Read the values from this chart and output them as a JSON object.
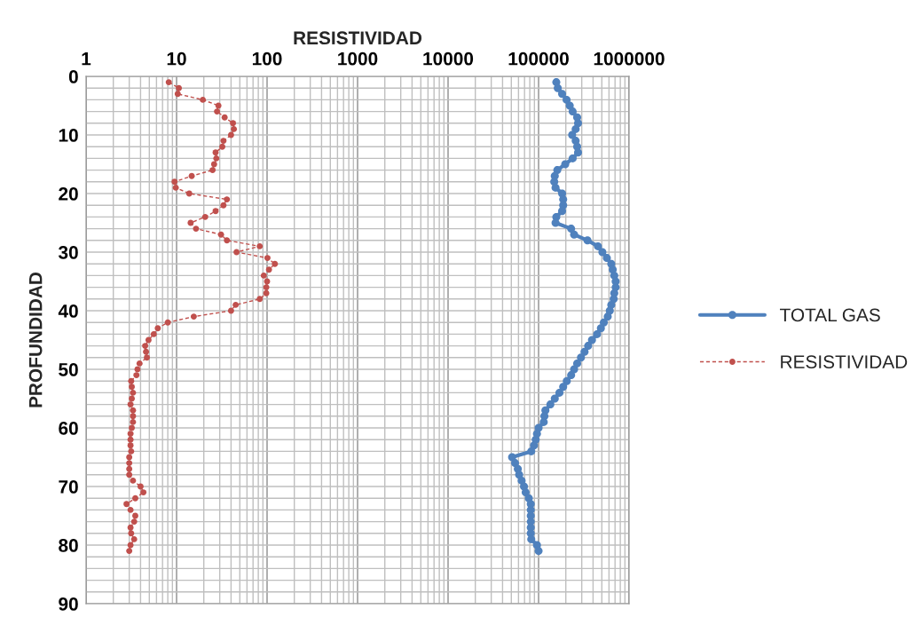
{
  "chart_data": {
    "type": "line",
    "xlabel": "RESISTIVIDAD",
    "ylabel": "PROFUNDIDAD",
    "log": "x",
    "xlim": [
      1,
      1000000
    ],
    "xticks": [
      1,
      10,
      100,
      1000,
      10000,
      100000,
      1000000
    ],
    "ylim": [
      90,
      0
    ],
    "yticks": [
      0,
      {
        "value": 2,
        "label": null
      },
      {
        "value": 4,
        "label": null
      },
      {
        "value": 6,
        "label": null
      },
      {
        "value": 8,
        "label": null
      },
      10,
      {
        "value": 12,
        "label": null
      },
      {
        "value": 14,
        "label": null
      },
      {
        "value": 16,
        "label": null
      },
      {
        "value": 18,
        "label": null
      },
      20,
      {
        "value": 22,
        "label": null
      },
      {
        "value": 24,
        "label": null
      },
      {
        "value": 26,
        "label": null
      },
      {
        "value": 28,
        "label": null
      },
      30,
      {
        "value": 32,
        "label": null
      },
      {
        "value": 34,
        "label": null
      },
      {
        "value": 36,
        "label": null
      },
      {
        "value": 38,
        "label": null
      },
      40,
      {
        "value": 42,
        "label": null
      },
      {
        "value": 44,
        "label": null
      },
      {
        "value": 46,
        "label": null
      },
      {
        "value": 48,
        "label": null
      },
      50,
      {
        "value": 52,
        "label": null
      },
      {
        "value": 54,
        "label": null
      },
      {
        "value": 56,
        "label": null
      },
      {
        "value": 58,
        "label": null
      },
      60,
      {
        "value": 62,
        "label": null
      },
      {
        "value": 64,
        "label": null
      },
      {
        "value": 66,
        "label": null
      },
      {
        "value": 68,
        "label": null
      },
      70,
      {
        "value": 72,
        "label": null
      },
      {
        "value": 74,
        "label": null
      },
      {
        "value": 76,
        "label": null
      },
      {
        "value": 78,
        "label": null
      },
      80,
      {
        "value": 82,
        "label": null
      },
      {
        "value": 84,
        "label": null
      },
      {
        "value": 86,
        "label": null
      },
      {
        "value": 88,
        "label": null
      },
      90
    ],
    "grid": true,
    "legend": "right",
    "series": [
      {
        "name": "TOTAL GAS",
        "color": "#4f81bd",
        "marker": "circle",
        "line_style": "solid",
        "x": [
          157000,
          163000,
          182000,
          204000,
          221000,
          238000,
          267000,
          273000,
          257000,
          235000,
          257000,
          267000,
          273000,
          238000,
          197000,
          161000,
          151000,
          149000,
          154000,
          182000,
          187000,
          187000,
          182000,
          157000,
          154000,
          229000,
          247000,
          347000,
          453000,
          507000,
          568000,
          636000,
          660000,
          686000,
          711000,
          711000,
          686000,
          676000,
          636000,
          612000,
          581000,
          526000,
          488000,
          443000,
          389000,
          353000,
          322000,
          294000,
          267000,
          247000,
          229000,
          205000,
          187000,
          170000,
          151000,
          135000,
          119000,
          116000,
          114000,
          100000,
          96000,
          93000,
          89000,
          83000,
          51000,
          55000,
          59000,
          61000,
          65000,
          69000,
          72000,
          78000,
          82000,
          82000,
          82000,
          82000,
          82000,
          82000,
          83000,
          96000,
          100000
        ],
        "values": [
          1,
          2,
          3,
          4,
          5,
          6,
          7,
          8,
          9,
          10,
          11,
          12,
          13,
          14,
          15,
          16,
          17,
          18,
          19,
          20,
          21,
          22,
          23,
          24,
          25,
          26,
          27,
          28,
          29,
          30,
          31,
          32,
          33,
          34,
          35,
          36,
          37,
          38,
          39,
          40,
          41,
          42,
          43,
          44,
          45,
          46,
          47,
          48,
          49,
          50,
          51,
          52,
          53,
          54,
          55,
          56,
          57,
          58,
          59,
          60,
          61,
          62,
          63,
          64,
          65,
          66,
          67,
          68,
          69,
          70,
          71,
          72,
          73,
          74,
          75,
          76,
          77,
          78,
          79,
          80,
          81
        ]
      },
      {
        "name": "RESISTIVIDAD",
        "color": "#c0504d",
        "marker": "circle",
        "line_style": "dashed",
        "x": [
          8.2,
          10.6,
          10.3,
          19.5,
          29,
          28,
          34,
          42,
          43,
          40,
          33,
          32,
          27,
          27.5,
          26,
          25,
          14.7,
          9.5,
          9.8,
          13.8,
          36,
          33,
          27,
          20.7,
          14.3,
          16.4,
          31,
          36,
          83,
          46,
          101,
          122,
          105,
          92,
          100,
          98,
          98,
          83,
          45,
          40,
          15.5,
          8,
          6.2,
          5.6,
          4.9,
          4.5,
          4.6,
          4.7,
          3.9,
          3.7,
          3.6,
          3.15,
          3.2,
          3.3,
          3.2,
          3.1,
          3.3,
          3.3,
          3.3,
          3.2,
          3.1,
          3.1,
          3.1,
          3.15,
          3.0,
          3.0,
          3.0,
          3.0,
          3.3,
          4.0,
          4.3,
          3.5,
          2.8,
          3.1,
          3.5,
          3.4,
          3.1,
          3.15,
          3.4,
          3.1,
          3.0
        ],
        "values": [
          1,
          2,
          3,
          4,
          5,
          6,
          7,
          8,
          9,
          10,
          11,
          12,
          13,
          14,
          15,
          16,
          17,
          18,
          19,
          20,
          21,
          22,
          23,
          24,
          25,
          26,
          27,
          28,
          29,
          30,
          31,
          32,
          33,
          34,
          35,
          36,
          37,
          38,
          39,
          40,
          41,
          42,
          43,
          44,
          45,
          46,
          47,
          48,
          49,
          50,
          51,
          52,
          53,
          54,
          55,
          56,
          57,
          58,
          59,
          60,
          61,
          62,
          63,
          64,
          65,
          66,
          67,
          68,
          69,
          70,
          71,
          72,
          73,
          74,
          75,
          76,
          77,
          78,
          79,
          80,
          81
        ]
      }
    ]
  }
}
